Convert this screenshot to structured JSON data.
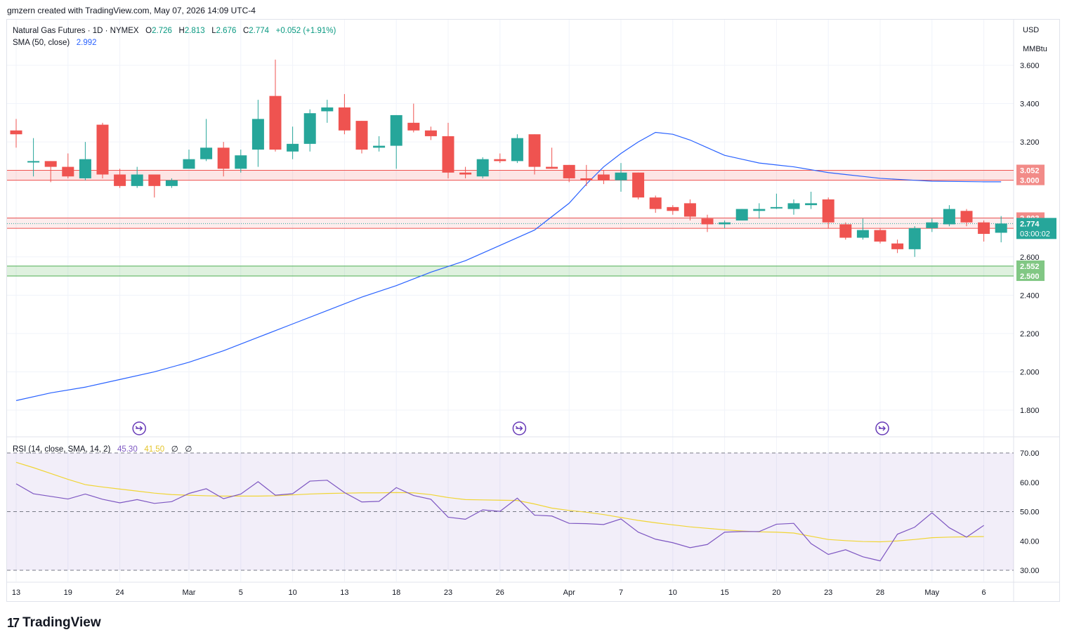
{
  "header": {
    "attribution": "gmzern created with TradingView.com, May 07, 2026 14:09 UTC-4"
  },
  "legend": {
    "symbol": "Natural Gas Futures · 1D · NYMEX",
    "o_label": "O",
    "o_value": "2.726",
    "h_label": "H",
    "h_value": "2.813",
    "l_label": "L",
    "l_value": "2.676",
    "c_label": "C",
    "c_value": "2.774",
    "change": "+0.052 (+1.91%)",
    "sma_label": "SMA (50, close)",
    "sma_value": "2.992"
  },
  "rsi_legend": {
    "label": "RSI (14, close, SMA, 14, 2)",
    "rsi_value": "45.30",
    "sma_value": "41.50",
    "extra1": "∅",
    "extra2": "∅"
  },
  "units": {
    "currency": "USD",
    "unit": "MMBtu"
  },
  "brand": {
    "name": "TradingView",
    "logo_text": "17"
  },
  "colors": {
    "up": "#26a69a",
    "down": "#ef5350",
    "sma": "#2962ff",
    "rsi": "#7e57c2",
    "rsi_sma": "#f0d535",
    "resistance": "#ef5350",
    "support": "#4caf50"
  },
  "chart_data": [
    {
      "type": "candlestick",
      "title": "Natural Gas Futures · 1D · NYMEX",
      "ylim": [
        1.68,
        3.72
      ],
      "y_ticks": [
        "1.800",
        "2.000",
        "2.200",
        "2.400",
        "2.600",
        "3.200",
        "3.400",
        "3.600"
      ],
      "x_ticks": [
        "13",
        "19",
        "24",
        "Mar",
        "5",
        "10",
        "13",
        "18",
        "23",
        "26",
        "Apr",
        "7",
        "10",
        "15",
        "20",
        "23",
        "28",
        "May",
        "6"
      ],
      "candles": [
        [
          3.26,
          3.32,
          3.17,
          3.24
        ],
        [
          3.1,
          3.22,
          3.02,
          3.1
        ],
        [
          3.1,
          3.1,
          2.99,
          3.07
        ],
        [
          3.07,
          3.14,
          3.01,
          3.02
        ],
        [
          3.01,
          3.2,
          3.0,
          3.11
        ],
        [
          3.29,
          3.3,
          3.01,
          3.03
        ],
        [
          3.03,
          3.06,
          2.96,
          2.97
        ],
        [
          2.97,
          3.07,
          2.96,
          3.03
        ],
        [
          3.03,
          3.03,
          2.91,
          2.97
        ],
        [
          2.97,
          3.01,
          2.96,
          3.0
        ],
        [
          3.06,
          3.16,
          3.06,
          3.11
        ],
        [
          3.11,
          3.32,
          3.1,
          3.17
        ],
        [
          3.17,
          3.2,
          3.02,
          3.06
        ],
        [
          3.06,
          3.16,
          3.04,
          3.13
        ],
        [
          3.16,
          3.42,
          3.07,
          3.32
        ],
        [
          3.44,
          3.63,
          3.15,
          3.16
        ],
        [
          3.15,
          3.28,
          3.11,
          3.19
        ],
        [
          3.19,
          3.37,
          3.15,
          3.35
        ],
        [
          3.36,
          3.42,
          3.3,
          3.38
        ],
        [
          3.38,
          3.45,
          3.24,
          3.26
        ],
        [
          3.31,
          3.31,
          3.14,
          3.16
        ],
        [
          3.17,
          3.23,
          3.15,
          3.18
        ],
        [
          3.18,
          3.34,
          3.06,
          3.34
        ],
        [
          3.3,
          3.4,
          3.25,
          3.26
        ],
        [
          3.26,
          3.28,
          3.21,
          3.23
        ],
        [
          3.23,
          3.3,
          3.01,
          3.04
        ],
        [
          3.04,
          3.07,
          3.01,
          3.03
        ],
        [
          3.02,
          3.12,
          3.01,
          3.11
        ],
        [
          3.11,
          3.14,
          3.09,
          3.1
        ],
        [
          3.1,
          3.24,
          3.09,
          3.22
        ],
        [
          3.24,
          3.24,
          3.03,
          3.07
        ],
        [
          3.07,
          3.17,
          3.06,
          3.06
        ],
        [
          3.08,
          3.08,
          2.99,
          3.01
        ],
        [
          3.01,
          3.08,
          2.97,
          3.0
        ],
        [
          3.03,
          3.05,
          2.98,
          3.0
        ],
        [
          3.0,
          3.09,
          2.94,
          3.04
        ],
        [
          3.04,
          3.04,
          2.9,
          2.91
        ],
        [
          2.91,
          2.92,
          2.83,
          2.85
        ],
        [
          2.86,
          2.87,
          2.82,
          2.84
        ],
        [
          2.88,
          2.9,
          2.79,
          2.81
        ],
        [
          2.8,
          2.82,
          2.73,
          2.77
        ],
        [
          2.77,
          2.79,
          2.75,
          2.78
        ],
        [
          2.79,
          2.85,
          2.79,
          2.85
        ],
        [
          2.84,
          2.88,
          2.8,
          2.85
        ],
        [
          2.86,
          2.93,
          2.85,
          2.86
        ],
        [
          2.85,
          2.9,
          2.82,
          2.88
        ],
        [
          2.87,
          2.94,
          2.85,
          2.88
        ],
        [
          2.9,
          2.91,
          2.75,
          2.78
        ],
        [
          2.77,
          2.78,
          2.69,
          2.7
        ],
        [
          2.7,
          2.8,
          2.69,
          2.74
        ],
        [
          2.74,
          2.75,
          2.67,
          2.68
        ],
        [
          2.67,
          2.69,
          2.62,
          2.64
        ],
        [
          2.64,
          2.76,
          2.6,
          2.75
        ],
        [
          2.75,
          2.8,
          2.73,
          2.78
        ],
        [
          2.77,
          2.87,
          2.76,
          2.85
        ],
        [
          2.84,
          2.85,
          2.76,
          2.78
        ],
        [
          2.78,
          2.79,
          2.68,
          2.72
        ],
        [
          2.726,
          2.813,
          2.676,
          2.774
        ]
      ],
      "sma50": [
        [
          0,
          1.85
        ],
        [
          2,
          1.89
        ],
        [
          4,
          1.92
        ],
        [
          6,
          1.96
        ],
        [
          8,
          2.0
        ],
        [
          10,
          2.05
        ],
        [
          12,
          2.11
        ],
        [
          14,
          2.18
        ],
        [
          16,
          2.25
        ],
        [
          18,
          2.32
        ],
        [
          20,
          2.39
        ],
        [
          22,
          2.45
        ],
        [
          24,
          2.52
        ],
        [
          26,
          2.58
        ],
        [
          28,
          2.66
        ],
        [
          30,
          2.74
        ],
        [
          32,
          2.88
        ],
        [
          33,
          2.98
        ],
        [
          34,
          3.07
        ],
        [
          35,
          3.14
        ],
        [
          36,
          3.2
        ],
        [
          37,
          3.25
        ],
        [
          38,
          3.24
        ],
        [
          39,
          3.21
        ],
        [
          40,
          3.17
        ],
        [
          41,
          3.13
        ],
        [
          42,
          3.11
        ],
        [
          43,
          3.09
        ],
        [
          44,
          3.08
        ],
        [
          45,
          3.07
        ],
        [
          46,
          3.055
        ],
        [
          47,
          3.04
        ],
        [
          48,
          3.03
        ],
        [
          49,
          3.02
        ],
        [
          50,
          3.01
        ],
        [
          51,
          3.005
        ],
        [
          52,
          3.0
        ],
        [
          53,
          2.995
        ],
        [
          54,
          2.994
        ],
        [
          55,
          2.993
        ],
        [
          56,
          2.992
        ],
        [
          57,
          2.992
        ]
      ],
      "levels": [
        {
          "label": "3.052",
          "value": 3.052,
          "kind": "resistance"
        },
        {
          "label": "3.000",
          "value": 3.0,
          "kind": "resistance"
        },
        {
          "label": "2.803",
          "value": 2.803,
          "kind": "resistance"
        },
        {
          "label": "2.749",
          "value": 2.749,
          "kind": "resistance"
        },
        {
          "label": "2.552",
          "value": 2.552,
          "kind": "support"
        },
        {
          "label": "2.500",
          "value": 2.5,
          "kind": "support"
        }
      ],
      "last_price": {
        "value": 2.774,
        "label": "2.774",
        "countdown": "03:00:02"
      }
    },
    {
      "type": "line",
      "title": "RSI (14, close, SMA, 14, 2)",
      "ylim": [
        28,
        72
      ],
      "y_ticks": [
        "70.00",
        "60.00",
        "50.00",
        "40.00",
        "30.00"
      ],
      "bands": [
        30,
        70
      ],
      "midline": 50,
      "rsi": [
        59.5,
        56.1,
        55.2,
        54.3,
        56.0,
        54.2,
        53.0,
        54.1,
        52.8,
        53.4,
        56.2,
        57.8,
        54.4,
        56.0,
        60.2,
        55.6,
        56.1,
        60.4,
        60.7,
        56.5,
        53.3,
        53.5,
        58.2,
        55.5,
        54.2,
        48.1,
        47.4,
        50.6,
        50.1,
        54.6,
        48.8,
        48.5,
        46.0,
        45.9,
        45.6,
        47.5,
        43.0,
        40.6,
        39.4,
        37.7,
        38.8,
        43.0,
        43.2,
        43.2,
        45.7,
        46.0,
        39.1,
        35.4,
        37.0,
        34.6,
        33.2,
        42.3,
        44.7,
        49.6,
        44.5,
        41.3,
        45.3
      ],
      "rsi_sma": [
        66.8,
        65.0,
        63.0,
        61.0,
        59.2,
        58.4,
        57.7,
        57.0,
        56.3,
        55.8,
        55.6,
        55.4,
        55.3,
        55.3,
        55.3,
        55.4,
        55.7,
        56.0,
        56.2,
        56.3,
        56.4,
        56.4,
        56.5,
        56.4,
        55.8,
        54.8,
        54.1,
        54.0,
        53.9,
        53.8,
        52.6,
        51.2,
        50.4,
        49.8,
        49.0,
        48.0,
        47.0,
        46.2,
        45.5,
        44.8,
        44.3,
        43.8,
        43.4,
        43.1,
        43.0,
        42.7,
        41.6,
        40.5,
        40.1,
        39.8,
        39.7,
        40.0,
        40.5,
        41.1,
        41.3,
        41.4,
        41.5
      ]
    }
  ],
  "markers": [
    {
      "name": "event-marker",
      "x_index": 7
    },
    {
      "name": "event-marker",
      "x_index": 29
    },
    {
      "name": "event-marker",
      "x_index": 50
    }
  ]
}
